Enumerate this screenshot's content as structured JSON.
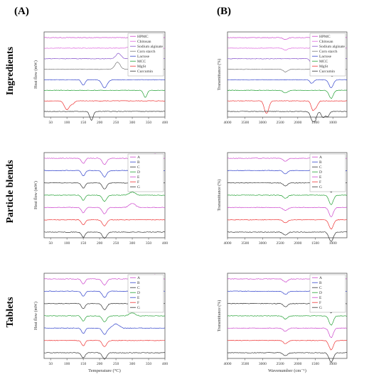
{
  "column_labels": [
    "(A)",
    "(B)"
  ],
  "row_labels": [
    "Ingredients",
    "Particle blends",
    "Tablets"
  ],
  "colors": {
    "black": "#333333",
    "red": "#ee3333",
    "blue": "#3344cc",
    "green": "#22a033",
    "magenta": "#cc44cc",
    "gray": "#777777",
    "purple": "#8855cc",
    "pink": "#dd66dd"
  },
  "chart_data": [
    {
      "type": "line",
      "panel": "A-Ingredients",
      "xlabel": "",
      "ylabel": "Heat flow (mW)",
      "xlim": [
        30,
        400
      ],
      "xticks": [
        "50",
        "100",
        "150",
        "200",
        "250",
        "300",
        "350",
        "400"
      ],
      "legend": "top-right",
      "series": [
        {
          "name": "HPMC",
          "color": "#cc44cc",
          "peaks": [
            [
              380,
              -0.15,
              0.25
            ]
          ]
        },
        {
          "name": "Chitosan",
          "color": "#dd66dd",
          "peaks": [
            [
              300,
              0.3,
              0.35
            ]
          ]
        },
        {
          "name": "Sodium alginate",
          "color": "#8855cc",
          "peaks": [
            [
              258,
              0.6,
              0.3
            ]
          ]
        },
        {
          "name": "Corn starch",
          "color": "#777777",
          "peaks": [
            [
              255,
              0.8,
              0.3
            ]
          ]
        },
        {
          "name": "Lactose",
          "color": "#3344cc",
          "peaks": [
            [
              150,
              -0.6,
              0.2
            ],
            [
              215,
              -0.9,
              0.3
            ]
          ]
        },
        {
          "name": "MCC",
          "color": "#22a033",
          "peaks": [
            [
              340,
              -0.8,
              0.2
            ]
          ]
        },
        {
          "name": "MgSt",
          "color": "#ee3333",
          "peaks": [
            [
              100,
              -1.0,
              0.3
            ],
            [
              118,
              -0.3,
              0.2
            ]
          ]
        },
        {
          "name": "Curcumin",
          "color": "#333333",
          "peaks": [
            [
              175,
              -1.0,
              0.2
            ]
          ]
        }
      ]
    },
    {
      "type": "line",
      "panel": "B-Ingredients",
      "xlabel": "",
      "ylabel": "Transmittance (%)",
      "xlim": [
        4000,
        600
      ],
      "xticks": [
        "4000",
        "3500",
        "3000",
        "2500",
        "2000",
        "1500",
        "1000"
      ],
      "legend": "top-right",
      "series": [
        {
          "name": "HPMC",
          "color": "#cc44cc",
          "peaks": [
            [
              2350,
              -0.2,
              0.25
            ],
            [
              1050,
              -0.9,
              0.25
            ]
          ]
        },
        {
          "name": "Chitosan",
          "color": "#dd66dd",
          "peaks": [
            [
              2350,
              -0.2,
              0.25
            ],
            [
              1050,
              -0.8,
              0.25
            ]
          ]
        },
        {
          "name": "Sodium alginate",
          "color": "#8855cc",
          "peaks": [
            [
              1600,
              -0.6,
              0.2
            ],
            [
              1030,
              -0.8,
              0.25
            ]
          ]
        },
        {
          "name": "Corn starch",
          "color": "#777777",
          "peaks": [
            [
              2350,
              -0.3,
              0.25
            ],
            [
              1020,
              -0.8,
              0.25
            ]
          ]
        },
        {
          "name": "Lactose",
          "color": "#3344cc",
          "peaks": [
            [
              1600,
              -0.4,
              0.2
            ],
            [
              1050,
              -0.9,
              0.25
            ]
          ]
        },
        {
          "name": "MCC",
          "color": "#22a033",
          "peaks": [
            [
              2350,
              -0.3,
              0.25
            ],
            [
              1050,
              -0.9,
              0.25
            ]
          ]
        },
        {
          "name": "MgSt",
          "color": "#ee3333",
          "peaks": [
            [
              2920,
              -1.0,
              0.2
            ],
            [
              2850,
              -0.8,
              0.2
            ],
            [
              1570,
              -1.0,
              0.2
            ],
            [
              1470,
              -0.6,
              0.2
            ]
          ]
        },
        {
          "name": "Curcumin",
          "color": "#333333",
          "peaks": [
            [
              1600,
              -0.8,
              0.2
            ],
            [
              1510,
              -1.0,
              0.2
            ],
            [
              1280,
              -0.7,
              0.2
            ],
            [
              1150,
              -0.6,
              0.2
            ]
          ]
        }
      ]
    },
    {
      "type": "line",
      "panel": "A-Particle blends",
      "xlabel": "",
      "ylabel": "Heat flow (mW)",
      "xlim": [
        30,
        400
      ],
      "xticks": [
        "50",
        "100",
        "150",
        "200",
        "250",
        "300",
        "350",
        "400"
      ],
      "legend": "top-right",
      "series": [
        {
          "name": "A",
          "color": "#cc44cc",
          "peaks": [
            [
              150,
              -0.5,
              0.2
            ],
            [
              215,
              -0.6,
              0.25
            ],
            [
              370,
              0.4,
              0.35
            ]
          ]
        },
        {
          "name": "B",
          "color": "#3344cc",
          "peaks": [
            [
              150,
              -0.5,
              0.2
            ],
            [
              215,
              -0.6,
              0.25
            ]
          ]
        },
        {
          "name": "C",
          "color": "#333333",
          "peaks": [
            [
              150,
              -0.5,
              0.2
            ],
            [
              215,
              -0.6,
              0.25
            ]
          ]
        },
        {
          "name": "D",
          "color": "#22a033",
          "peaks": [
            [
              150,
              -0.5,
              0.2
            ],
            [
              215,
              -0.6,
              0.25
            ],
            [
              300,
              0.3,
              0.35
            ]
          ]
        },
        {
          "name": "E",
          "color": "#cc44cc",
          "peaks": [
            [
              150,
              -0.5,
              0.2
            ],
            [
              215,
              -0.6,
              0.25
            ],
            [
              300,
              0.4,
              0.35
            ]
          ]
        },
        {
          "name": "F",
          "color": "#ee3333",
          "peaks": [
            [
              150,
              -0.5,
              0.2
            ],
            [
              215,
              -0.6,
              0.25
            ]
          ]
        },
        {
          "name": "G",
          "color": "#333333",
          "peaks": [
            [
              150,
              -0.5,
              0.2
            ],
            [
              215,
              -0.6,
              0.25
            ]
          ]
        }
      ]
    },
    {
      "type": "line",
      "panel": "B-Particle blends",
      "xlabel": "",
      "ylabel": "Transmittance (%)",
      "xlim": [
        4000,
        600
      ],
      "xticks": [
        "4000",
        "3500",
        "3000",
        "2500",
        "2000",
        "1500",
        "1000"
      ],
      "legend": "top-right",
      "series": [
        {
          "name": "A",
          "color": "#cc44cc",
          "peaks": [
            [
              2350,
              -0.3,
              0.25
            ],
            [
              1050,
              -0.9,
              0.25
            ]
          ]
        },
        {
          "name": "B",
          "color": "#3344cc",
          "peaks": [
            [
              2350,
              -0.3,
              0.25
            ],
            [
              1050,
              -0.9,
              0.25
            ]
          ]
        },
        {
          "name": "C",
          "color": "#333333",
          "peaks": [
            [
              2350,
              -0.3,
              0.25
            ],
            [
              1050,
              -0.9,
              0.25
            ]
          ]
        },
        {
          "name": "D",
          "color": "#22a033",
          "peaks": [
            [
              2350,
              -0.3,
              0.25
            ],
            [
              1050,
              -0.9,
              0.25
            ]
          ]
        },
        {
          "name": "E",
          "color": "#cc44cc",
          "peaks": [
            [
              2350,
              -0.3,
              0.25
            ],
            [
              1050,
              -0.9,
              0.25
            ]
          ]
        },
        {
          "name": "F",
          "color": "#ee3333",
          "peaks": [
            [
              2350,
              -0.3,
              0.25
            ],
            [
              1050,
              -0.9,
              0.25
            ]
          ]
        },
        {
          "name": "G",
          "color": "#333333",
          "peaks": [
            [
              2350,
              -0.3,
              0.25
            ],
            [
              1050,
              -0.9,
              0.25
            ]
          ]
        }
      ]
    },
    {
      "type": "line",
      "panel": "A-Tablets",
      "xlabel": "Temperature (°C)",
      "ylabel": "Heat flow (mW)",
      "xlim": [
        30,
        400
      ],
      "xticks": [
        "50",
        "100",
        "150",
        "200",
        "250",
        "300",
        "350",
        "400"
      ],
      "legend": "top-right",
      "series": [
        {
          "name": "A",
          "color": "#cc44cc",
          "peaks": [
            [
              150,
              -0.5,
              0.2
            ],
            [
              215,
              -0.6,
              0.25
            ],
            [
              370,
              0.4,
              0.35
            ]
          ]
        },
        {
          "name": "B",
          "color": "#3344cc",
          "peaks": [
            [
              150,
              -0.5,
              0.2
            ],
            [
              215,
              -0.6,
              0.25
            ]
          ]
        },
        {
          "name": "C",
          "color": "#333333",
          "peaks": [
            [
              150,
              -0.5,
              0.2
            ],
            [
              215,
              -0.6,
              0.25
            ]
          ]
        },
        {
          "name": "D",
          "color": "#22a033",
          "peaks": [
            [
              150,
              -0.5,
              0.2
            ],
            [
              215,
              -0.6,
              0.25
            ],
            [
              300,
              0.3,
              0.35
            ]
          ]
        },
        {
          "name": "E",
          "color": "#3344cc",
          "peaks": [
            [
              150,
              -0.5,
              0.2
            ],
            [
              215,
              -0.6,
              0.25
            ],
            [
              250,
              0.4,
              0.35
            ]
          ]
        },
        {
          "name": "F",
          "color": "#ee3333",
          "peaks": [
            [
              150,
              -0.5,
              0.2
            ],
            [
              215,
              -0.6,
              0.25
            ]
          ]
        },
        {
          "name": "G",
          "color": "#333333",
          "peaks": [
            [
              150,
              -0.5,
              0.2
            ],
            [
              215,
              -0.6,
              0.25
            ]
          ]
        }
      ]
    },
    {
      "type": "line",
      "panel": "B-Tablets",
      "xlabel": "Wavenumber (cm⁻¹)",
      "ylabel": "Transmittance (%)",
      "xlim": [
        4000,
        600
      ],
      "xticks": [
        "4000",
        "3500",
        "3000",
        "2500",
        "2000",
        "1500",
        "1000"
      ],
      "legend": "top-right",
      "series": [
        {
          "name": "A",
          "color": "#cc44cc",
          "peaks": [
            [
              2350,
              -0.3,
              0.25
            ],
            [
              1050,
              -0.9,
              0.25
            ]
          ]
        },
        {
          "name": "B",
          "color": "#3344cc",
          "peaks": [
            [
              2350,
              -0.3,
              0.25
            ],
            [
              1050,
              -0.9,
              0.25
            ]
          ]
        },
        {
          "name": "C",
          "color": "#333333",
          "peaks": [
            [
              2350,
              -0.3,
              0.25
            ],
            [
              1050,
              -0.9,
              0.25
            ]
          ]
        },
        {
          "name": "D",
          "color": "#22a033",
          "peaks": [
            [
              2350,
              -0.3,
              0.25
            ],
            [
              1050,
              -0.9,
              0.25
            ]
          ]
        },
        {
          "name": "E",
          "color": "#cc44cc",
          "peaks": [
            [
              2350,
              -0.3,
              0.25
            ],
            [
              1050,
              -0.9,
              0.25
            ]
          ]
        },
        {
          "name": "F",
          "color": "#ee3333",
          "peaks": [
            [
              2350,
              -0.3,
              0.25
            ],
            [
              1050,
              -0.9,
              0.25
            ]
          ]
        },
        {
          "name": "G",
          "color": "#333333",
          "peaks": [
            [
              2350,
              -0.3,
              0.25
            ],
            [
              1050,
              -0.9,
              0.25
            ]
          ]
        }
      ]
    }
  ]
}
